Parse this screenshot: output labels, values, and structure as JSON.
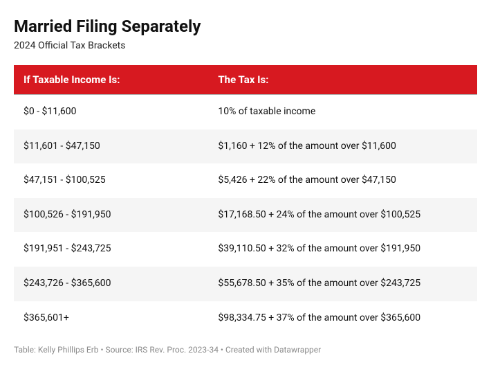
{
  "title": "Married Filing Separately",
  "subtitle": "2024 Official Tax Brackets",
  "table": {
    "type": "table",
    "header_bg": "#d71920",
    "header_fg": "#ffffff",
    "row_alt_bg": "#f5f5f5",
    "row_bg": "#ffffff",
    "columns": [
      "If Taxable Income Is:",
      "The Tax Is:"
    ],
    "rows": [
      [
        "$0 - $11,600",
        "10% of taxable income"
      ],
      [
        "$11,601 - $47,150",
        "$1,160 + 12% of the amount over $11,600"
      ],
      [
        "$47,151 - $100,525",
        "$5,426 + 22% of the amount over $47,150"
      ],
      [
        "$100,526 - $191,950",
        "$17,168.50 + 24% of the amount over $100,525"
      ],
      [
        "$191,951 - $243,725",
        "$39,110.50 + 32% of the amount over $191,950"
      ],
      [
        "$243,726 - $365,600",
        "$55,678.50 + 35% of the amount over $243,725"
      ],
      [
        "$365,601+",
        "$98,334.75 + 37% of the amount over $365,600"
      ]
    ]
  },
  "footer": "Table: Kelly Phillips Erb • Source: IRS Rev. Proc. 2023-34 • Created with Datawrapper"
}
